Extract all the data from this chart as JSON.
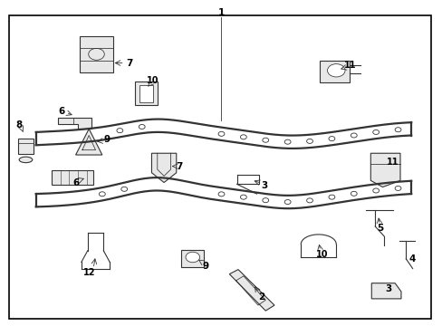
{
  "bg_color": "#ffffff",
  "border_color": "#000000",
  "line_color": "#333333",
  "fig_width": 4.89,
  "fig_height": 3.6,
  "dpi": 100
}
